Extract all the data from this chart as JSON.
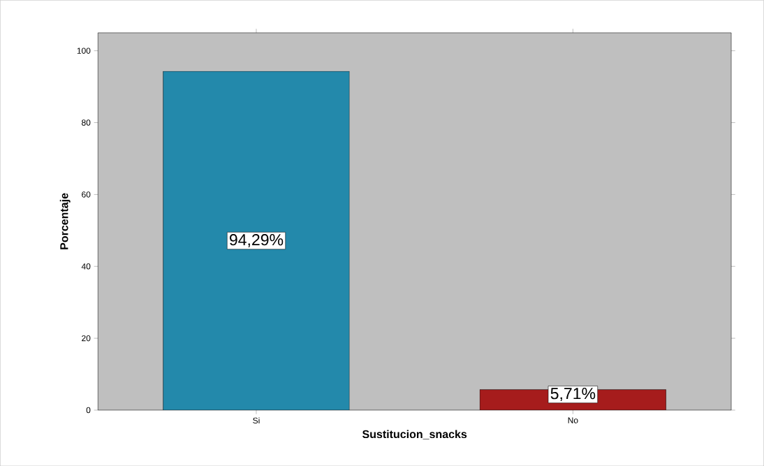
{
  "chart_data": {
    "type": "bar",
    "xlabel": "Sustitucion_snacks",
    "ylabel": "Porcentaje",
    "categories": [
      "Si",
      "No"
    ],
    "values": [
      94.29,
      5.71
    ],
    "colors": [
      "#2389ab",
      "#a61c1c"
    ],
    "value_labels": [
      "94,29%",
      "5,71%"
    ],
    "ylim": [
      0,
      105
    ],
    "yticks": [
      0,
      20,
      40,
      60,
      80,
      100
    ]
  }
}
